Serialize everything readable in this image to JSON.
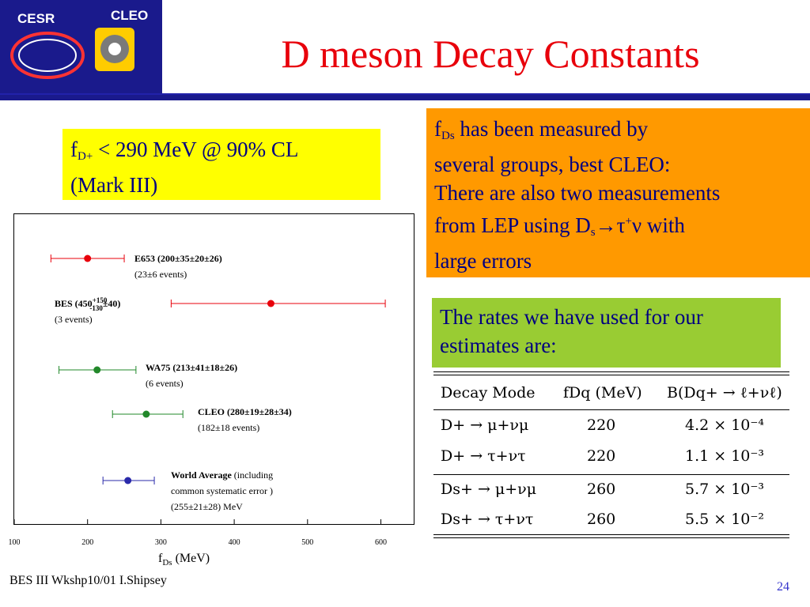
{
  "logo": {
    "cesr": "CESR",
    "cleo": "CLEO"
  },
  "title": "D meson Decay Constants",
  "yellow_box": {
    "f": "f",
    "sub": "D+",
    "rest": " < 290 MeV @ 90% CL",
    "line2": "(Mark III)"
  },
  "orange_box": {
    "l1_f": "f",
    "l1_sub": "Ds",
    "l1_rest": " has been measured by",
    "l2": "several groups, best CLEO:",
    "l3": "There are also two measurements",
    "l4_a": "from LEP using D",
    "l4_sub": "s",
    "l4_b": "→τ",
    "l4_sup": "+",
    "l4_c": "ν with",
    "l5": "large errors"
  },
  "green_box": {
    "line1": "The rates we have used for our",
    "line2": "estimates are:"
  },
  "chart_data": {
    "type": "scatter",
    "xlabel": "fDs (MeV)",
    "xlim": [
      100,
      650
    ],
    "x_ticks": [
      "100",
      "200",
      "300",
      "400",
      "500",
      "600"
    ],
    "points": [
      {
        "x": 200,
        "xmin": 150,
        "xmax": 250,
        "color": "#e8000b",
        "label": "E653 (200±35±20±26)",
        "sub": "(23±6 events)"
      },
      {
        "x": 450,
        "xmin": 314,
        "xmax": 606,
        "color": "#e8000b",
        "label": "BES (450",
        "sup": "+150",
        "subscript": "-130",
        "label_end": "±40)",
        "sub": "(3 events)"
      },
      {
        "x": 213,
        "xmin": 161,
        "xmax": 266,
        "color": "#22882a",
        "label": "WA75 (213±41±18±26)",
        "sub": "(6 events)"
      },
      {
        "x": 280,
        "xmin": 234,
        "xmax": 330,
        "color": "#22882a",
        "label": "CLEO (280±19±28±34)",
        "sub": "(182±18 events)"
      },
      {
        "x": 255,
        "xmin": 221,
        "xmax": 291,
        "color": "#2a2aaa",
        "label": "World Average",
        "label2": " (including",
        "sub": "common systematic error )",
        "sub2": "(255±21±28) MeV"
      }
    ]
  },
  "table": {
    "headers": [
      "Decay Mode",
      "fDq (MeV)",
      "B(Dq+ → ℓ+νℓ)"
    ],
    "rows": [
      {
        "mode": "D+ → μ+νμ",
        "f": "220",
        "br": "4.2 × 10⁻⁴"
      },
      {
        "mode": "D+ → τ+ντ",
        "f": "220",
        "br": "1.1 × 10⁻³"
      },
      {
        "mode": "Ds+ → μ+νμ",
        "f": "260",
        "br": "5.7 × 10⁻³"
      },
      {
        "mode": "Ds+ → τ+ντ",
        "f": "260",
        "br": "5.5 × 10⁻²"
      }
    ]
  },
  "footer": "BES III Wkshp10/01 I.Shipsey",
  "page_number": "24",
  "colors": {
    "title": "#e8000b",
    "navy": "#1a1a8c",
    "yellow": "#ffff00",
    "orange": "#ff9900",
    "green": "#99cc33"
  }
}
